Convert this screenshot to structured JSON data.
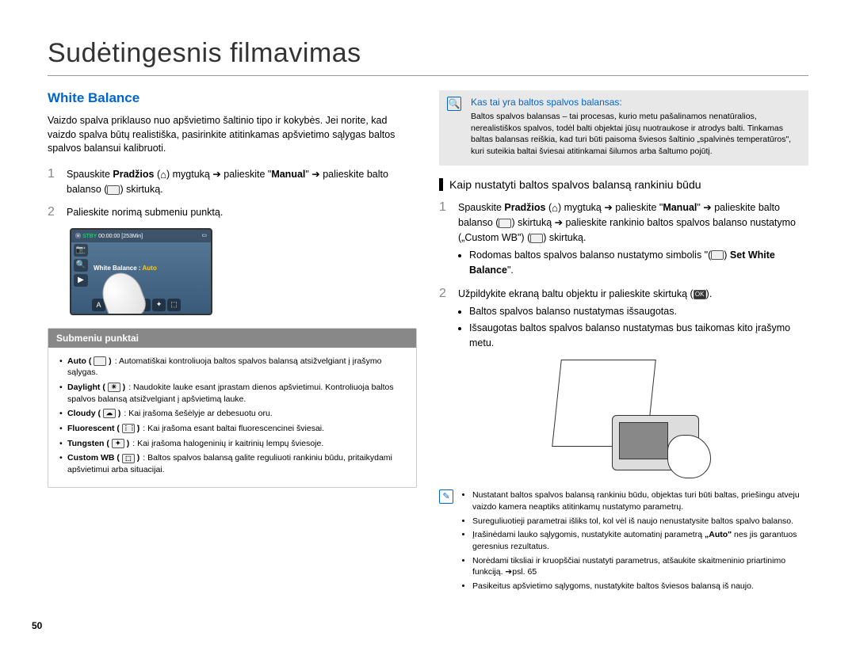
{
  "page_title": "Sudėtingesnis filmavimas",
  "page_number": "50",
  "left": {
    "heading": "White Balance",
    "intro": "Vaizdo spalva priklauso nuo apšvietimo šaltinio tipo ir kokybės. Jei norite, kad vaizdo spalva būtų realistiška, pasirinkite atitinkamas apšvietimo sąlygas baltos spalvos balansui kalibruoti.",
    "step1_a": "Spauskite ",
    "step1_b": "Pradžios",
    "step1_c": " (",
    "step1_home": "⌂",
    "step1_d": ") mygtuką ➔ palieskite \"",
    "step1_e": "Manual",
    "step1_f": "\" ➔ palieskite balto balanso (",
    "step1_wbicon": " ",
    "step1_g": ") skirtuką.",
    "step2": "Palieskite norimą submeniu punktą.",
    "screenshot": {
      "stby": "STBY",
      "time": "00:00:00",
      "remain": "[253Min]",
      "wb_label": "White Balance : ",
      "wb_value": "Auto"
    },
    "submenu_header": "Submeniu punktai",
    "submenu": [
      {
        "name": "Auto",
        "icon": " ",
        "desc": ": Automatiškai kontroliuoja baltos spalvos balansą atsižvelgiant į įrašymo sąlygas."
      },
      {
        "name": "Daylight",
        "icon": "☀",
        "desc": ": Naudokite lauke esant įprastam dienos apšvietimui. Kontroliuoja baltos spalvos balansą atsižvelgiant į apšvietimą lauke."
      },
      {
        "name": "Cloudy",
        "icon": "☁",
        "desc": ": Kai įrašoma šešėlyje ar debesuotu oru."
      },
      {
        "name": "Fluorescent",
        "icon": "⋮⋮⋮",
        "desc": ": Kai įrašoma esant baltai fluorescencinei šviesai."
      },
      {
        "name": "Tungsten",
        "icon": "✦",
        "desc": ": Kai įrašoma halogeninių ir kaitrinių lempų šviesoje."
      },
      {
        "name": "Custom WB",
        "icon": "⬚",
        "desc": ": Baltos spalvos balansą galite reguliuoti rankiniu būdu, pritaikydami apšvietimui arba situacijai."
      }
    ]
  },
  "right": {
    "info_title": "Kas tai yra baltos spalvos balansas:",
    "info_body": "Baltos spalvos balansas – tai procesas, kurio metu pašalinamos nenatūralios, nerealistiškos spalvos, todėl balti objektai jūsų nuotraukose ir atrodys balti. Tinkamas baltas balansas reiškia, kad turi būti paisoma šviesos šaltinio „spalvinės temperatūros\", kuri suteikia baltai šviesai atitinkamai šilumos arba šaltumo pojūtį.",
    "sub_heading": "Kaip nustatyti baltos spalvos balansą rankiniu būdu",
    "step1_a": "Spauskite ",
    "step1_b": "Pradžios",
    "step1_c": " (",
    "step1_home": "⌂",
    "step1_d": ") mygtuką ➔ palieskite \"",
    "step1_e": "Manual",
    "step1_f": "\" ➔ palieskite balto balanso (",
    "step1_g": ") skirtuką ➔ palieskite rankinio baltos spalvos balanso nustatymo („Custom WB\") (",
    "step1_h": ") skirtuką.",
    "step1_bullet1a": "Rodomas baltos spalvos balanso nustatymo simbolis \"(",
    "step1_bullet1b": ") ",
    "step1_bullet1c": "Set White Balance",
    "step1_bullet1d": "\".",
    "step2_a": "Užpildykite ekraną baltu objektu ir palieskite skirtuką (",
    "step2_ok": "OK",
    "step2_b": ").",
    "step2_bullets": [
      "Baltos spalvos balanso nustatymas išsaugotas.",
      "Išsaugotas baltos spalvos balanso nustatymas bus taikomas kito įrašymo metu."
    ],
    "notes": [
      "Nustatant baltos spalvos balansą rankiniu būdu, objektas turi būti baltas, priešingu atveju vaizdo kamera neaptiks atitinkamų nustatymo parametrų.",
      "Sureguliuotieji parametrai išliks tol, kol vėl iš naujo nenustatysite baltos spalvo balanso.",
      "Įrašinėdami lauko sąlygomis, nustatykite automatinį parametrą „Auto\", nes jis garantuos geresnius rezultatus.",
      "Norėdami tiksliai ir kruopščiai nustatyti parametrus, atšaukite skaitmeninio priartinimo funkciją. ➔psl. 65",
      "Pasikeitus apšvietimo sąlygoms, nustatykite baltos šviesos balansą iš naujo."
    ]
  }
}
